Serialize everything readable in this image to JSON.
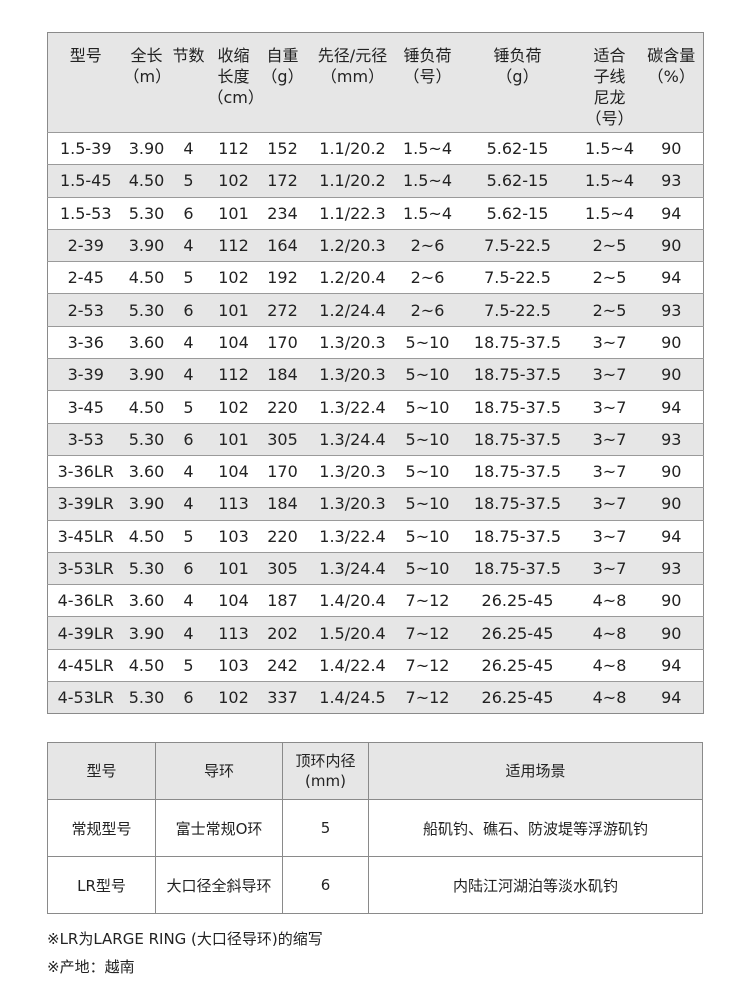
{
  "spec_table": {
    "headers": [
      "型号",
      "全长\n（m）",
      "节数",
      "收缩\n长度\n（cm）",
      "自重\n（g）",
      "先径/元径\n（mm）",
      "锤负荷\n（号）",
      "锤负荷\n（g）",
      "适合\n子线\n尼龙\n（号）",
      "碳含量\n（%）"
    ],
    "rows": [
      [
        "1.5-39",
        "3.90",
        "4",
        "112",
        "152",
        "1.1/20.2",
        "1.5~4",
        "5.62-15",
        "1.5~4",
        "90"
      ],
      [
        "1.5-45",
        "4.50",
        "5",
        "102",
        "172",
        "1.1/20.2",
        "1.5~4",
        "5.62-15",
        "1.5~4",
        "93"
      ],
      [
        "1.5-53",
        "5.30",
        "6",
        "101",
        "234",
        "1.1/22.3",
        "1.5~4",
        "5.62-15",
        "1.5~4",
        "94"
      ],
      [
        "2-39",
        "3.90",
        "4",
        "112",
        "164",
        "1.2/20.3",
        "2~6",
        "7.5-22.5",
        "2~5",
        "90"
      ],
      [
        "2-45",
        "4.50",
        "5",
        "102",
        "192",
        "1.2/20.4",
        "2~6",
        "7.5-22.5",
        "2~5",
        "94"
      ],
      [
        "2-53",
        "5.30",
        "6",
        "101",
        "272",
        "1.2/24.4",
        "2~6",
        "7.5-22.5",
        "2~5",
        "93"
      ],
      [
        "3-36",
        "3.60",
        "4",
        "104",
        "170",
        "1.3/20.3",
        "5~10",
        "18.75-37.5",
        "3~7",
        "90"
      ],
      [
        "3-39",
        "3.90",
        "4",
        "112",
        "184",
        "1.3/20.3",
        "5~10",
        "18.75-37.5",
        "3~7",
        "90"
      ],
      [
        "3-45",
        "4.50",
        "5",
        "102",
        "220",
        "1.3/22.4",
        "5~10",
        "18.75-37.5",
        "3~7",
        "94"
      ],
      [
        "3-53",
        "5.30",
        "6",
        "101",
        "305",
        "1.3/24.4",
        "5~10",
        "18.75-37.5",
        "3~7",
        "93"
      ],
      [
        "3-36LR",
        "3.60",
        "4",
        "104",
        "170",
        "1.3/20.3",
        "5~10",
        "18.75-37.5",
        "3~7",
        "90"
      ],
      [
        "3-39LR",
        "3.90",
        "4",
        "113",
        "184",
        "1.3/20.3",
        "5~10",
        "18.75-37.5",
        "3~7",
        "90"
      ],
      [
        "3-45LR",
        "4.50",
        "5",
        "103",
        "220",
        "1.3/22.4",
        "5~10",
        "18.75-37.5",
        "3~7",
        "94"
      ],
      [
        "3-53LR",
        "5.30",
        "6",
        "101",
        "305",
        "1.3/24.4",
        "5~10",
        "18.75-37.5",
        "3~7",
        "93"
      ],
      [
        "4-36LR",
        "3.60",
        "4",
        "104",
        "187",
        "1.4/20.4",
        "7~12",
        "26.25-45",
        "4~8",
        "90"
      ],
      [
        "4-39LR",
        "3.90",
        "4",
        "113",
        "202",
        "1.5/20.4",
        "7~12",
        "26.25-45",
        "4~8",
        "90"
      ],
      [
        "4-45LR",
        "4.50",
        "5",
        "103",
        "242",
        "1.4/22.4",
        "7~12",
        "26.25-45",
        "4~8",
        "94"
      ],
      [
        "4-53LR",
        "5.30",
        "6",
        "102",
        "337",
        "1.4/24.5",
        "7~12",
        "26.25-45",
        "4~8",
        "94"
      ]
    ]
  },
  "guide_table": {
    "headers": [
      "型号",
      "导环",
      "顶环内径\n(mm)",
      "适用场景"
    ],
    "rows": [
      [
        "常规型号",
        "富士常规O环",
        "5",
        "船矶钓、礁石、防波堤等浮游矶钓"
      ],
      [
        "LR型号",
        "大口径全斜导环",
        "6",
        "内陆江河湖泊等淡水矶钓"
      ]
    ]
  },
  "notes": [
    "※LR为LARGE RING (大口径导环)的缩写",
    "※产地：越南"
  ]
}
